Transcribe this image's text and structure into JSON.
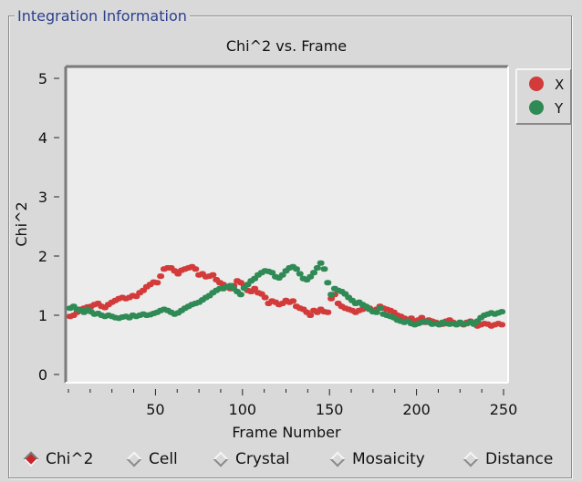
{
  "group": {
    "title": "Integration Information"
  },
  "chart_data": {
    "type": "scatter",
    "title": "Chi^2 vs. Frame",
    "xlabel": "Frame Number",
    "ylabel": "Chi^2",
    "xlim": [
      0,
      250
    ],
    "ylim": [
      0,
      5
    ],
    "x_ticks": [
      50,
      100,
      150,
      200,
      250
    ],
    "y_ticks": [
      0,
      1,
      2,
      3,
      4,
      5
    ],
    "grid": false,
    "legend": "top-right",
    "series": [
      {
        "name": "X",
        "color": "#d33a3a",
        "x": [
          1,
          3,
          5,
          7,
          9,
          11,
          13,
          15,
          17,
          19,
          21,
          23,
          25,
          27,
          29,
          31,
          33,
          35,
          37,
          39,
          41,
          43,
          45,
          47,
          49,
          51,
          53,
          55,
          57,
          59,
          61,
          63,
          65,
          67,
          69,
          71,
          73,
          75,
          77,
          79,
          81,
          83,
          85,
          87,
          89,
          91,
          93,
          95,
          97,
          99,
          101,
          103,
          105,
          107,
          109,
          111,
          113,
          115,
          117,
          119,
          121,
          123,
          125,
          127,
          129,
          131,
          133,
          135,
          137,
          139,
          141,
          143,
          145,
          147,
          149,
          151,
          153,
          155,
          157,
          159,
          161,
          163,
          165,
          167,
          169,
          171,
          173,
          175,
          177,
          179,
          181,
          183,
          185,
          187,
          189,
          191,
          193,
          195,
          197,
          199,
          201,
          203,
          205,
          207,
          209,
          211,
          213,
          215,
          217,
          219,
          221,
          223,
          225,
          227,
          229,
          231,
          233,
          235,
          237,
          239,
          241,
          243,
          245,
          247,
          249
        ],
        "y": [
          0.98,
          1.0,
          1.05,
          1.1,
          1.12,
          1.14,
          1.15,
          1.18,
          1.2,
          1.15,
          1.13,
          1.18,
          1.22,
          1.25,
          1.28,
          1.3,
          1.28,
          1.3,
          1.33,
          1.32,
          1.38,
          1.42,
          1.48,
          1.52,
          1.56,
          1.55,
          1.66,
          1.78,
          1.8,
          1.8,
          1.75,
          1.7,
          1.76,
          1.78,
          1.8,
          1.82,
          1.78,
          1.68,
          1.7,
          1.65,
          1.66,
          1.68,
          1.6,
          1.55,
          1.52,
          1.48,
          1.45,
          1.5,
          1.58,
          1.55,
          1.5,
          1.42,
          1.4,
          1.45,
          1.38,
          1.36,
          1.3,
          1.2,
          1.24,
          1.22,
          1.18,
          1.2,
          1.25,
          1.22,
          1.24,
          1.15,
          1.12,
          1.1,
          1.05,
          1.0,
          1.08,
          1.05,
          1.1,
          1.06,
          1.05,
          1.28,
          1.35,
          1.2,
          1.15,
          1.12,
          1.1,
          1.08,
          1.05,
          1.08,
          1.1,
          1.12,
          1.12,
          1.08,
          1.1,
          1.15,
          1.12,
          1.1,
          1.08,
          1.05,
          1.0,
          0.98,
          0.95,
          0.92,
          0.95,
          0.9,
          0.92,
          0.96,
          0.88,
          0.92,
          0.9,
          0.88,
          0.86,
          0.85,
          0.9,
          0.92,
          0.88,
          0.85,
          0.86,
          0.84,
          0.88,
          0.9,
          0.87,
          0.82,
          0.84,
          0.86,
          0.85,
          0.82,
          0.84,
          0.86,
          0.84
        ]
      },
      {
        "name": "Y",
        "color": "#2f8a55",
        "x": [
          1,
          3,
          5,
          7,
          9,
          11,
          13,
          15,
          17,
          19,
          21,
          23,
          25,
          27,
          29,
          31,
          33,
          35,
          37,
          39,
          41,
          43,
          45,
          47,
          49,
          51,
          53,
          55,
          57,
          59,
          61,
          63,
          65,
          67,
          69,
          71,
          73,
          75,
          77,
          79,
          81,
          83,
          85,
          87,
          89,
          91,
          93,
          95,
          97,
          99,
          101,
          103,
          105,
          107,
          109,
          111,
          113,
          115,
          117,
          119,
          121,
          123,
          125,
          127,
          129,
          131,
          133,
          135,
          137,
          139,
          141,
          143,
          145,
          147,
          149,
          151,
          153,
          155,
          157,
          159,
          161,
          163,
          165,
          167,
          169,
          171,
          173,
          175,
          177,
          179,
          181,
          183,
          185,
          187,
          189,
          191,
          193,
          195,
          197,
          199,
          201,
          203,
          205,
          207,
          209,
          211,
          213,
          215,
          217,
          219,
          221,
          223,
          225,
          227,
          229,
          231,
          233,
          235,
          237,
          239,
          241,
          243,
          245,
          247,
          249
        ],
        "y": [
          1.12,
          1.15,
          1.1,
          1.08,
          1.05,
          1.1,
          1.06,
          1.02,
          1.03,
          1.0,
          0.98,
          1.0,
          0.98,
          0.96,
          0.95,
          0.97,
          0.98,
          0.96,
          1.0,
          0.98,
          1.0,
          1.02,
          1.0,
          1.01,
          1.03,
          1.05,
          1.08,
          1.1,
          1.08,
          1.05,
          1.02,
          1.04,
          1.08,
          1.12,
          1.15,
          1.18,
          1.2,
          1.22,
          1.26,
          1.3,
          1.33,
          1.38,
          1.42,
          1.45,
          1.45,
          1.48,
          1.5,
          1.45,
          1.4,
          1.35,
          1.46,
          1.52,
          1.58,
          1.62,
          1.68,
          1.72,
          1.75,
          1.74,
          1.72,
          1.65,
          1.63,
          1.68,
          1.75,
          1.8,
          1.82,
          1.78,
          1.7,
          1.62,
          1.6,
          1.65,
          1.72,
          1.8,
          1.88,
          1.78,
          1.55,
          1.35,
          1.45,
          1.42,
          1.4,
          1.36,
          1.3,
          1.25,
          1.2,
          1.22,
          1.18,
          1.15,
          1.1,
          1.06,
          1.05,
          1.12,
          1.02,
          1.0,
          0.98,
          0.96,
          0.92,
          0.9,
          0.88,
          0.9,
          0.86,
          0.84,
          0.86,
          0.88,
          0.9,
          0.88,
          0.85,
          0.86,
          0.84,
          0.88,
          0.86,
          0.85,
          0.86,
          0.84,
          0.88,
          0.85,
          0.86,
          0.88,
          0.85,
          0.9,
          0.96,
          1.0,
          1.02,
          1.04,
          1.02,
          1.04,
          1.06
        ]
      }
    ]
  },
  "radios": [
    {
      "label": "Chi^2",
      "selected": true
    },
    {
      "label": "Cell",
      "selected": false
    },
    {
      "label": "Crystal",
      "selected": false
    },
    {
      "label": "Mosaicity",
      "selected": false
    },
    {
      "label": "Distance",
      "selected": false
    }
  ]
}
